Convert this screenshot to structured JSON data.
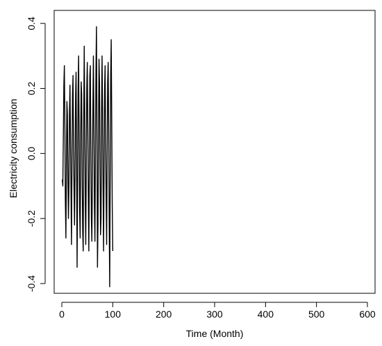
{
  "chart_data": {
    "type": "line",
    "title": "",
    "xlabel": "Time (Month)",
    "ylabel": "Electricity consumption",
    "xlim": [
      -15,
      615
    ],
    "ylim": [
      -0.43,
      0.44
    ],
    "x_ticks": [
      0,
      100,
      200,
      300,
      400,
      500,
      600
    ],
    "y_ticks": [
      -0.4,
      -0.2,
      0.0,
      0.2,
      0.4
    ],
    "y_tick_labels": [
      "-0.4",
      "-0.2",
      "0.0",
      "0.2",
      "0.4"
    ],
    "grid": false,
    "series": [
      {
        "x_start": 1,
        "x_step": 1,
        "approximate_values": [
          -0.08,
          -0.1,
          0.05,
          0.21,
          0.27,
          0.08,
          -0.15,
          -0.26,
          -0.05,
          0.16,
          0.12,
          -0.09,
          -0.2,
          -0.1,
          0.12,
          0.21,
          0.05,
          -0.12,
          -0.28,
          -0.02,
          0.18,
          0.24,
          0.02,
          -0.11,
          -0.22,
          -0.04,
          0.17,
          0.25,
          -0.03,
          -0.35,
          -0.1,
          0.2,
          0.3,
          0.06,
          -0.18,
          -0.26,
          0.03,
          0.22,
          0.18,
          -0.08,
          -0.24,
          -0.3,
          0.1,
          0.33,
          0.12,
          -0.14,
          -0.28,
          -0.05,
          0.2,
          0.28,
          0.08,
          -0.12,
          -0.3,
          -0.06,
          0.24,
          0.27,
          0.02,
          -0.2,
          -0.27,
          -0.08,
          0.14,
          0.3,
          0.1,
          -0.16,
          -0.27,
          0.0,
          0.25,
          0.39,
          0.07,
          -0.35,
          -0.22,
          0.06,
          0.29,
          0.22,
          -0.05,
          -0.25,
          -0.2,
          0.12,
          0.3,
          0.14,
          -0.1,
          -0.3,
          -0.06,
          0.2,
          0.27,
          0.05,
          -0.14,
          -0.28,
          -0.02,
          0.22,
          0.28,
          0.08,
          -0.2,
          -0.41,
          -0.08,
          0.24,
          0.35,
          0.1,
          -0.16,
          -0.3
        ]
      }
    ]
  }
}
